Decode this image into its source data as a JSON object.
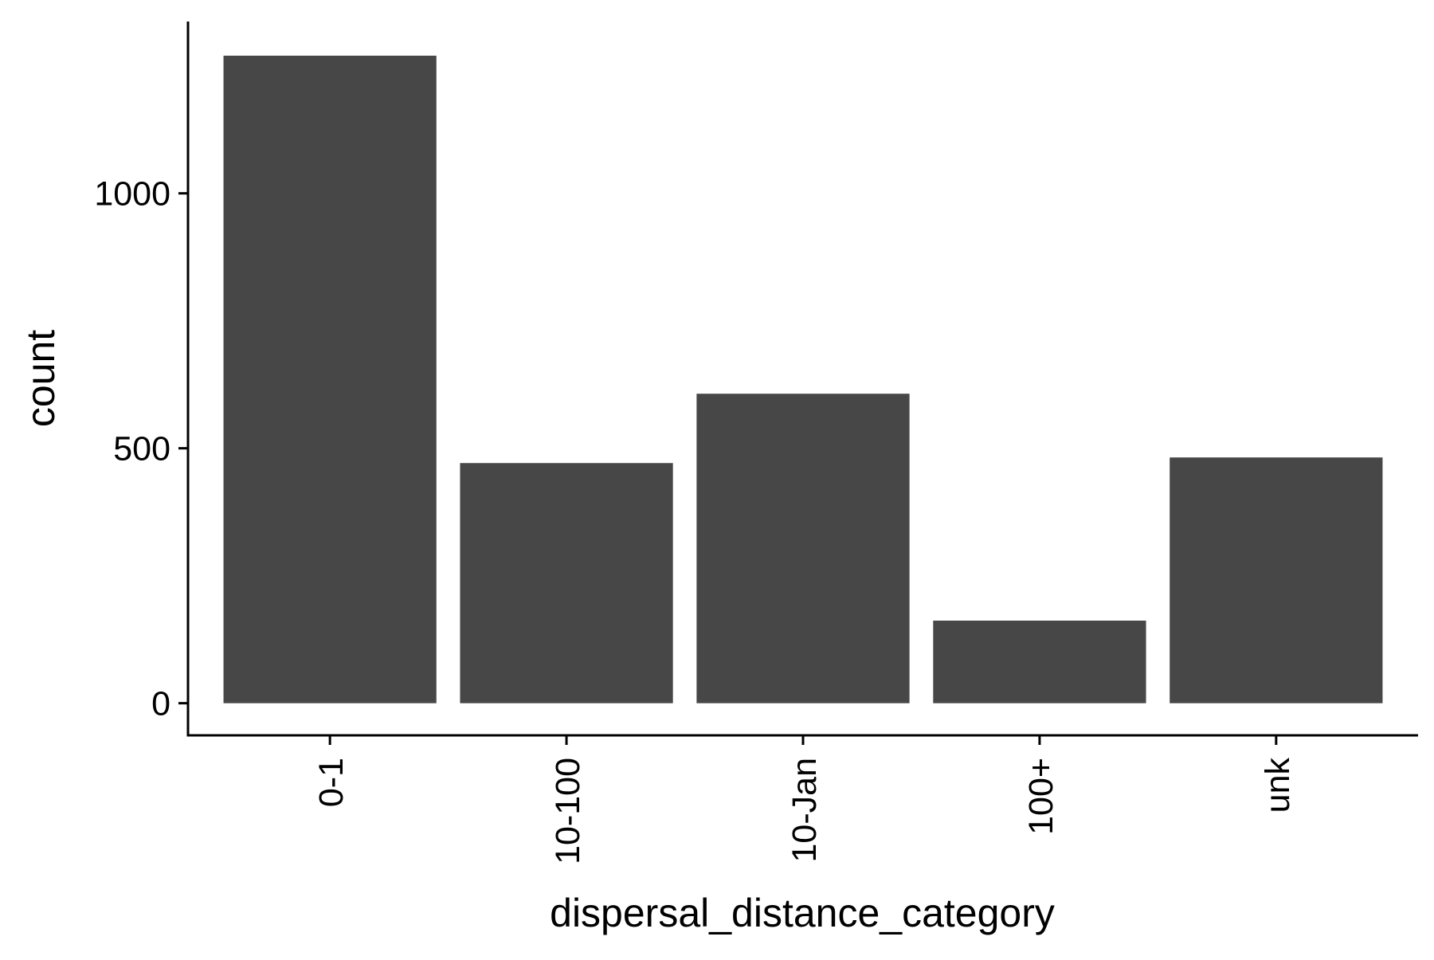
{
  "chart_data": {
    "type": "bar",
    "title": "",
    "xlabel": "dispersal_distance_category",
    "ylabel": "count",
    "categories": [
      "0-1",
      "10-100",
      "10-Jan",
      "100+",
      "unk"
    ],
    "values": [
      1270,
      471,
      607,
      162,
      482
    ],
    "ylim": [
      -63,
      1337
    ],
    "yticks": [
      0,
      500,
      1000
    ],
    "grid": false,
    "legend": "none",
    "bar_color": "#474747",
    "axis_color": "#000000"
  }
}
